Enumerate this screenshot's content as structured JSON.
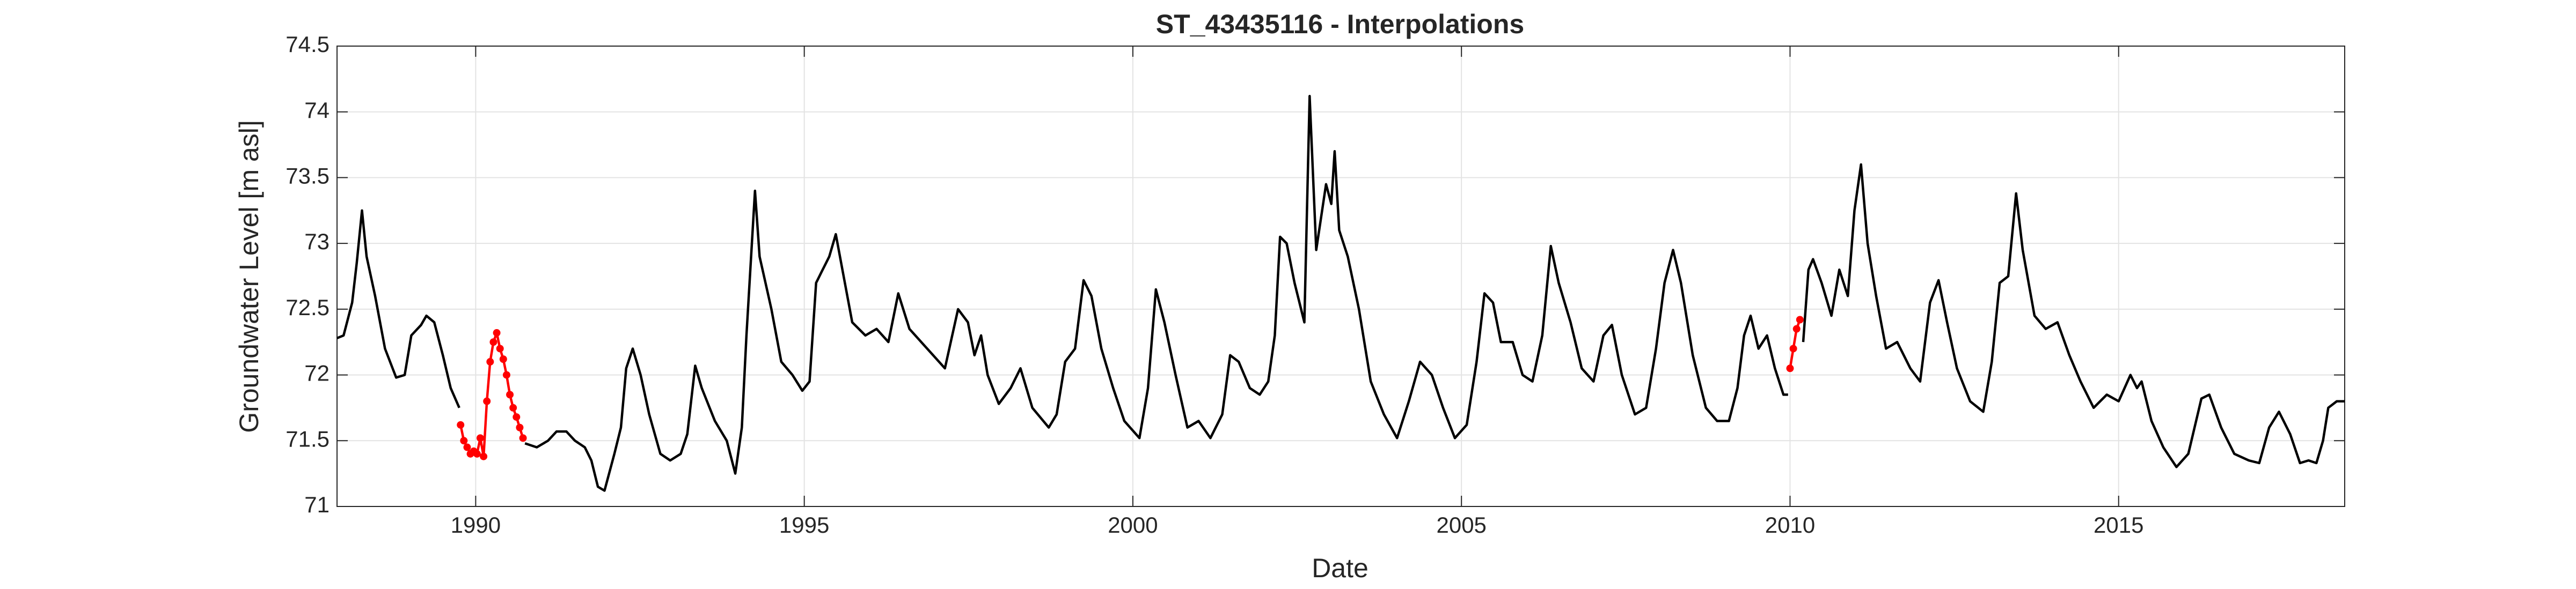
{
  "chart_data": {
    "type": "line",
    "title": "ST_43435116 - Interpolations",
    "x_label": "Date",
    "y_label": "Groundwater Level [m asl]",
    "xlim": [
      1987.89,
      2018.44
    ],
    "xticks": [
      1990,
      1995,
      2000,
      2005,
      2010,
      2015
    ],
    "ylim": [
      71,
      74.5
    ],
    "yticks": [
      71,
      71.5,
      72,
      72.5,
      73,
      73.5,
      74,
      74.5
    ],
    "grid": true,
    "series": [
      {
        "color": "#000000",
        "marker": false,
        "x": [
          1987.89,
          1987.99,
          1988.12,
          1988.19,
          1988.27,
          1988.34,
          1988.47,
          1988.62,
          1988.79,
          1988.92,
          1989.02,
          1989.17,
          1989.25,
          1989.37,
          1989.5,
          1989.62,
          1989.75,
          1990.25,
          1990.75,
          1990.93,
          1991.1,
          1991.23,
          1991.38,
          1991.51,
          1991.66,
          1991.76,
          1991.86,
          1991.96,
          1992.11,
          1992.21,
          1992.29,
          1992.39,
          1992.51,
          1992.64,
          1992.81,
          1992.96,
          1993.12,
          1993.22,
          1993.34,
          1993.44,
          1993.64,
          1993.82,
          1993.95,
          1994.05,
          1994.12,
          1994.25,
          1994.32,
          1994.5,
          1994.65,
          1994.82,
          1994.97,
          1995.08,
          1995.18,
          1995.28,
          1995.38,
          1995.48,
          1995.58,
          1995.73,
          1995.93,
          1996.1,
          1996.28,
          1996.43,
          1996.6,
          1996.78,
          1996.96,
          1997.14,
          1997.34,
          1997.49,
          1997.59,
          1997.69,
          1997.79,
          1997.96,
          1998.14,
          1998.29,
          1998.47,
          1998.72,
          1998.84,
          1998.97,
          1999.12,
          1999.25,
          1999.37,
          1999.52,
          1999.7,
          1999.87,
          2000.1,
          2000.23,
          2000.35,
          2000.48,
          2000.65,
          2000.83,
          2001.0,
          2001.18,
          2001.36,
          2001.48,
          2001.61,
          2001.78,
          2001.93,
          2002.06,
          2002.16,
          2002.24,
          2002.34,
          2002.46,
          2002.61,
          2002.69,
          2002.79,
          2002.94,
          2003.02,
          2003.07,
          2003.14,
          2003.27,
          2003.44,
          2003.62,
          2003.82,
          2004.02,
          2004.2,
          2004.37,
          2004.55,
          2004.72,
          2004.9,
          2005.08,
          2005.23,
          2005.35,
          2005.48,
          2005.6,
          2005.78,
          2005.93,
          2006.08,
          2006.23,
          2006.36,
          2006.48,
          2006.66,
          2006.83,
          2007.01,
          2007.16,
          2007.29,
          2007.44,
          2007.64,
          2007.81,
          2007.96,
          2008.09,
          2008.22,
          2008.34,
          2008.52,
          2008.72,
          2008.89,
          2009.07,
          2009.2,
          2009.3,
          2009.4,
          2009.52,
          2009.65,
          2009.77,
          2009.9,
          2009.97,
          2010.1,
          2010.2,
          2010.28,
          2010.35,
          2010.48,
          2010.63,
          2010.75,
          2010.88,
          2010.98,
          2011.08,
          2011.18,
          2011.31,
          2011.46,
          2011.63,
          2011.83,
          2011.98,
          2012.13,
          2012.26,
          2012.39,
          2012.54,
          2012.74,
          2012.94,
          2013.07,
          2013.19,
          2013.32,
          2013.44,
          2013.54,
          2013.72,
          2013.89,
          2014.07,
          2014.25,
          2014.42,
          2014.62,
          2014.82,
          2015.0,
          2015.18,
          2015.28,
          2015.35,
          2015.5,
          2015.68,
          2015.88,
          2016.06,
          2016.26,
          2016.38,
          2016.56,
          2016.76,
          2016.98,
          2017.14,
          2017.29,
          2017.44,
          2017.61,
          2017.76,
          2017.89,
          2018.01,
          2018.11,
          2018.19,
          2018.32,
          2018.44
        ],
        "values": [
          72.28,
          72.3,
          72.55,
          72.85,
          73.25,
          72.9,
          72.6,
          72.2,
          71.98,
          72.0,
          72.3,
          72.38,
          72.45,
          72.4,
          72.15,
          71.9,
          71.75,
          null,
          71.48,
          71.45,
          71.5,
          71.57,
          71.57,
          71.5,
          71.45,
          71.35,
          71.15,
          71.12,
          71.4,
          71.6,
          72.05,
          72.2,
          72.0,
          71.7,
          71.4,
          71.35,
          71.4,
          71.55,
          72.07,
          71.9,
          71.65,
          71.5,
          71.25,
          71.6,
          72.3,
          73.4,
          72.9,
          72.5,
          72.1,
          72.0,
          71.88,
          71.95,
          72.7,
          72.8,
          72.9,
          73.07,
          72.8,
          72.4,
          72.3,
          72.35,
          72.25,
          72.62,
          72.35,
          72.25,
          72.15,
          72.05,
          72.5,
          72.4,
          72.15,
          72.3,
          72.0,
          71.78,
          71.9,
          72.05,
          71.75,
          71.6,
          71.7,
          72.1,
          72.2,
          72.72,
          72.6,
          72.2,
          71.9,
          71.65,
          71.52,
          71.9,
          72.65,
          72.4,
          72.0,
          71.6,
          71.65,
          71.52,
          71.7,
          72.15,
          72.1,
          71.9,
          71.85,
          71.95,
          72.3,
          73.05,
          73.0,
          72.7,
          72.4,
          74.12,
          72.95,
          73.45,
          73.3,
          73.7,
          73.1,
          72.9,
          72.5,
          71.95,
          71.7,
          71.52,
          71.8,
          72.1,
          72.0,
          71.75,
          71.52,
          71.62,
          72.1,
          72.62,
          72.55,
          72.25,
          72.25,
          72.0,
          71.95,
          72.3,
          72.98,
          72.7,
          72.4,
          72.05,
          71.95,
          72.3,
          72.38,
          72.0,
          71.7,
          71.75,
          72.2,
          72.7,
          72.95,
          72.7,
          72.15,
          71.75,
          71.65,
          71.65,
          71.9,
          72.3,
          72.45,
          72.2,
          72.3,
          72.05,
          71.85,
          71.85,
          null,
          72.25,
          72.8,
          72.88,
          72.7,
          72.45,
          72.8,
          72.6,
          73.25,
          73.6,
          73.0,
          72.6,
          72.2,
          72.25,
          72.05,
          71.95,
          72.55,
          72.72,
          72.4,
          72.05,
          71.8,
          71.72,
          72.1,
          72.7,
          72.75,
          73.38,
          72.95,
          72.45,
          72.35,
          72.4,
          72.15,
          71.95,
          71.75,
          71.85,
          71.8,
          72.0,
          71.9,
          71.95,
          71.65,
          71.45,
          71.3,
          71.4,
          71.82,
          71.85,
          71.6,
          71.4,
          71.35,
          71.33,
          71.6,
          71.72,
          71.55,
          71.33,
          71.35,
          71.33,
          71.5,
          71.75,
          71.8,
          71.8
        ]
      },
      {
        "color": "#ff0000",
        "marker": true,
        "x": [
          1989.77,
          1989.82,
          1989.87,
          1989.92,
          1989.97,
          1990.02,
          1990.07,
          1990.12,
          1990.17,
          1990.22,
          1990.27,
          1990.32,
          1990.37,
          1990.42,
          1990.47,
          1990.52,
          1990.57,
          1990.62,
          1990.67,
          1990.72
        ],
        "values": [
          71.62,
          71.5,
          71.45,
          71.4,
          71.42,
          71.4,
          71.52,
          71.38,
          71.8,
          72.1,
          72.25,
          72.32,
          72.2,
          72.12,
          72.0,
          71.85,
          71.75,
          71.68,
          71.6,
          71.52
        ]
      },
      {
        "color": "#ff0000",
        "marker": true,
        "x": [
          2010.0,
          2010.05,
          2010.1,
          2010.15
        ],
        "values": [
          72.05,
          72.2,
          72.35,
          72.42
        ]
      }
    ]
  }
}
